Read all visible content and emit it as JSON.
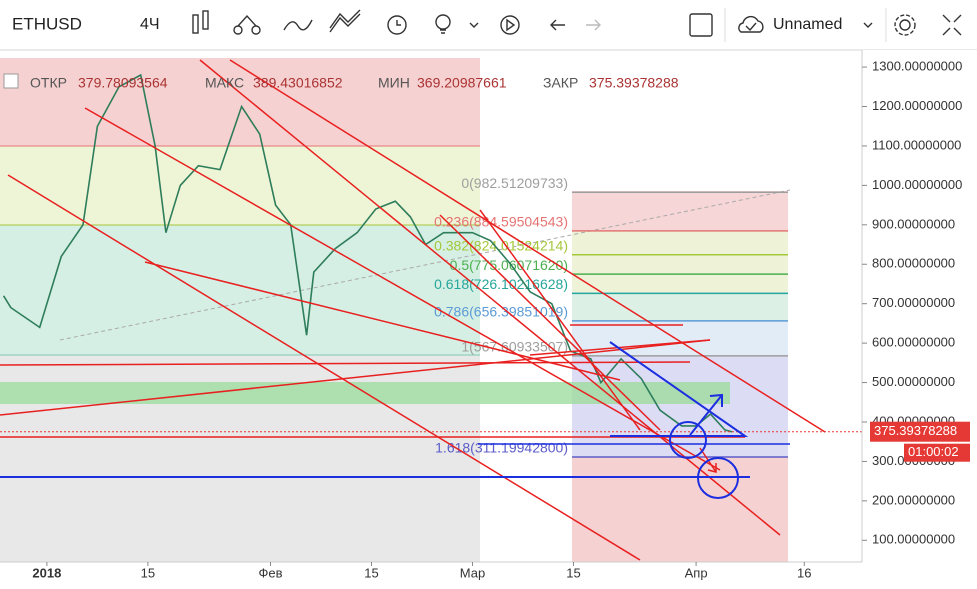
{
  "toolbar": {
    "symbol": "ETHUSD",
    "interval": "4Ч",
    "layout_name": "Unnamed"
  },
  "legend": {
    "open_label": "ОТКР",
    "open": "379.78093564",
    "high_label": "МАКС",
    "high": "389.43016852",
    "low_label": "МИН",
    "low": "369.20987661",
    "close_label": "ЗАКР",
    "close": "375.39378288"
  },
  "chart_data": {
    "type": "line",
    "color": "#2e7d5b",
    "x": [
      -6,
      -5,
      -1,
      2,
      5,
      7,
      10,
      13,
      15,
      16.5,
      18.5,
      21,
      24,
      27,
      29.5,
      31.7,
      33.8,
      36,
      37,
      40,
      43,
      45.6,
      48.3,
      50.4,
      52.5,
      55,
      59,
      61.5,
      64.3,
      67,
      70,
      72.6,
      75.4,
      76.8,
      79.6,
      82.4,
      85,
      88,
      90,
      92,
      94,
      95
    ],
    "values": [
      720,
      690,
      640,
      820,
      900,
      1150,
      1250,
      1280,
      1100,
      880,
      1000,
      1050,
      1040,
      1200,
      1130,
      950,
      900,
      620,
      780,
      840,
      880,
      940,
      960,
      920,
      850,
      880,
      880,
      860,
      800,
      730,
      700,
      580,
      560,
      500,
      560,
      510,
      430,
      390,
      390,
      420,
      380,
      375
    ],
    "xlim": [
      -6.5,
      113
    ],
    "xticks": [
      {
        "value": 0,
        "label": "2018"
      },
      {
        "value": 14,
        "label": "15"
      },
      {
        "value": 31,
        "label": "Фев"
      },
      {
        "value": 45,
        "label": "15"
      },
      {
        "value": 59,
        "label": "Мар"
      },
      {
        "value": 73,
        "label": "15"
      },
      {
        "value": 90,
        "label": "Апр"
      },
      {
        "value": 105,
        "label": "16"
      }
    ],
    "ylim": [
      45,
      1323
    ],
    "yticks": [
      {
        "value": 100,
        "label": "100.00000000"
      },
      {
        "value": 200,
        "label": "200.00000000"
      },
      {
        "value": 300,
        "label": "300.00000000"
      },
      {
        "value": 400,
        "label": "400.00000000"
      },
      {
        "value": 500,
        "label": "500.00000000"
      },
      {
        "value": 600,
        "label": "600.00000000"
      },
      {
        "value": 700,
        "label": "700.00000000"
      },
      {
        "value": 800,
        "label": "800.00000000"
      },
      {
        "value": 900,
        "label": "900.00000000"
      },
      {
        "value": 1000,
        "label": "1000.00000000"
      },
      {
        "value": 1100,
        "label": "1100.00000000"
      },
      {
        "value": 1200,
        "label": "1200.00000000"
      },
      {
        "value": 1300,
        "label": "1300.00000000"
      }
    ],
    "last_price": {
      "value": 375.39378288,
      "label": "375.39378288"
    },
    "countdown": "01:00:02",
    "fib": [
      {
        "value": 982.51209733,
        "label": "0(982.51209733)",
        "color": "#9e9e9e"
      },
      {
        "value": 884.59504543,
        "label": "0.236(884.59504543)",
        "color": "#e57373"
      },
      {
        "value": 824.01524214,
        "label": "0.382(824.01524214)",
        "color": "#a5c73a"
      },
      {
        "value": 775.0607162,
        "label": "0.5(775.06071620)",
        "color": "#4caf50"
      },
      {
        "value": 726.10216628,
        "label": "0.618(726.10216628)",
        "color": "#26a69a"
      },
      {
        "value": 656.39851019,
        "label": "0.786(656.39851019)",
        "color": "#5b9bd5"
      },
      {
        "value": 567.60933507,
        "label": "1(567.60933507)",
        "color": "#9e9e9e"
      },
      {
        "value": 311.199428,
        "label": "1.618(311.19942800)",
        "color": "#5c5cc9"
      }
    ]
  }
}
